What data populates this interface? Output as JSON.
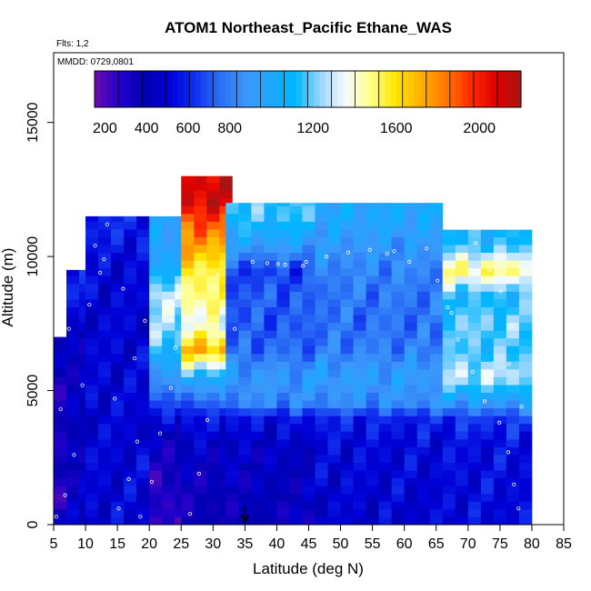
{
  "chart_data": {
    "type": "heatmap",
    "title": "ATOM1 Northeast_Pacific Ethane_WAS",
    "flights_label": "Flts: 1,2",
    "mmdd_label": "MMDD: 0729,0801",
    "xlabel": "Latitude (deg N)",
    "ylabel": "Altitude (m)",
    "xlim": [
      5,
      85
    ],
    "ylim": [
      0,
      17600
    ],
    "xticks": [
      "5",
      "10",
      "15",
      "20",
      "25",
      "30",
      "35",
      "40",
      "45",
      "50",
      "55",
      "60",
      "65",
      "70",
      "75",
      "80",
      "85"
    ],
    "yticks": [
      "0",
      "5000",
      "10000",
      "15000"
    ],
    "colorbar": {
      "min": 150,
      "max": 2200,
      "ticks": [
        "200",
        "400",
        "600",
        "800",
        "1200",
        "1600",
        "2000"
      ],
      "colors": [
        "#6a0dad",
        "#2200cc",
        "#0000b0",
        "#0000d8",
        "#1030ee",
        "#2a6ff5",
        "#3c96fa",
        "#1fa6ff",
        "#00b6ff",
        "#9ad6ff",
        "#f5fbff",
        "#ffff8a",
        "#ffe600",
        "#ffb000",
        "#ff7800",
        "#ff2a00",
        "#e00000",
        "#a81414"
      ]
    },
    "marker": {
      "latitude": 35,
      "altitude": 0
    },
    "data_columns": [
      {
        "lat": [
          5,
          20
        ],
        "top": 7000,
        "layers": [
          [
            0,
            450
          ],
          [
            800,
            330
          ],
          [
            1600,
            300
          ],
          [
            2400,
            290
          ],
          [
            3200,
            300
          ],
          [
            4000,
            320
          ],
          [
            5000,
            350
          ],
          [
            6000,
            380
          ]
        ]
      },
      {
        "lat": [
          7,
          20
        ],
        "top": 9500,
        "layers": [
          [
            7000,
            420
          ],
          [
            8000,
            520
          ],
          [
            9000,
            600
          ]
        ]
      },
      {
        "lat": [
          10,
          20
        ],
        "top": 11500,
        "layers": [
          [
            9500,
            500
          ],
          [
            10500,
            560
          ],
          [
            11000,
            600
          ]
        ]
      },
      {
        "lat": [
          20,
          25
        ],
        "top": 11500,
        "layers": [
          [
            0,
            240
          ],
          [
            1600,
            300
          ],
          [
            3500,
            420
          ],
          [
            5500,
            900
          ],
          [
            7000,
            1200
          ],
          [
            8500,
            1300
          ],
          [
            9500,
            1050
          ],
          [
            10500,
            950
          ]
        ]
      },
      {
        "lat": [
          25,
          32
        ],
        "top": 13000,
        "layers": [
          [
            0,
            360
          ],
          [
            2000,
            380
          ],
          [
            4000,
            550
          ],
          [
            5500,
            1050
          ],
          [
            6500,
            1700
          ],
          [
            7500,
            1350
          ],
          [
            8500,
            1500
          ],
          [
            9500,
            1550
          ],
          [
            10500,
            1750
          ],
          [
            11500,
            1950
          ],
          [
            12000,
            2100
          ]
        ]
      },
      {
        "lat": [
          32,
          46
        ],
        "top": 12000,
        "layers": [
          [
            0,
            380
          ],
          [
            3000,
            450
          ],
          [
            4000,
            560
          ],
          [
            4500,
            820
          ],
          [
            5500,
            900
          ],
          [
            6500,
            750
          ],
          [
            7500,
            700
          ],
          [
            8500,
            720
          ],
          [
            9500,
            650
          ],
          [
            10500,
            950
          ],
          [
            11500,
            1150
          ]
        ]
      },
      {
        "lat": [
          46,
          66
        ],
        "top": 12000,
        "layers": [
          [
            0,
            480
          ],
          [
            3000,
            520
          ],
          [
            4000,
            600
          ],
          [
            4500,
            840
          ],
          [
            5500,
            930
          ],
          [
            6500,
            800
          ],
          [
            7500,
            760
          ],
          [
            8500,
            780
          ],
          [
            9500,
            820
          ],
          [
            10500,
            900
          ],
          [
            11500,
            1000
          ]
        ]
      },
      {
        "lat": [
          66,
          79
        ],
        "top": 11000,
        "layers": [
          [
            0,
            520
          ],
          [
            3000,
            540
          ],
          [
            4000,
            650
          ],
          [
            4500,
            900
          ],
          [
            5500,
            1300
          ],
          [
            6500,
            1150
          ],
          [
            7500,
            1200
          ],
          [
            8500,
            1100
          ],
          [
            9500,
            1500
          ],
          [
            10500,
            1100
          ]
        ]
      }
    ],
    "sample_points": [
      [
        5.4,
        300
      ],
      [
        6.8,
        1100
      ],
      [
        8.2,
        2600
      ],
      [
        6.1,
        4300
      ],
      [
        9.5,
        5200
      ],
      [
        7.4,
        7300
      ],
      [
        10.6,
        8200
      ],
      [
        12.3,
        9400
      ],
      [
        11.5,
        10400
      ],
      [
        13.4,
        11200
      ],
      [
        15.2,
        600
      ],
      [
        16.8,
        1700
      ],
      [
        18.1,
        3100
      ],
      [
        14.6,
        4700
      ],
      [
        17.7,
        6200
      ],
      [
        19.3,
        7600
      ],
      [
        15.9,
        8800
      ],
      [
        12.9,
        9900
      ],
      [
        18.6,
        300
      ],
      [
        20.4,
        1600
      ],
      [
        21.7,
        3400
      ],
      [
        23.4,
        5100
      ],
      [
        24.1,
        6600
      ],
      [
        22.5,
        8100
      ],
      [
        26.4,
        400
      ],
      [
        27.8,
        1900
      ],
      [
        29.1,
        3900
      ],
      [
        31.6,
        6000
      ],
      [
        33.4,
        7300
      ],
      [
        30.7,
        9300
      ],
      [
        36.2,
        9800
      ],
      [
        38.5,
        9750
      ],
      [
        41.3,
        9700
      ],
      [
        44.6,
        9800
      ],
      [
        47.8,
        10000
      ],
      [
        51.2,
        10150
      ],
      [
        54.6,
        10250
      ],
      [
        57.3,
        10100
      ],
      [
        60.8,
        9800
      ],
      [
        63.5,
        10300
      ],
      [
        65.2,
        9100
      ],
      [
        66.8,
        8100
      ],
      [
        68.4,
        6900
      ],
      [
        70.7,
        5700
      ],
      [
        72.6,
        4600
      ],
      [
        74.9,
        3800
      ],
      [
        76.3,
        2700
      ],
      [
        77.2,
        1500
      ],
      [
        77.9,
        600
      ],
      [
        76.8,
        7400
      ],
      [
        75.1,
        8700
      ],
      [
        73.4,
        9500
      ],
      [
        71.2,
        10500
      ],
      [
        69.1,
        11100
      ],
      [
        78.4,
        4400
      ],
      [
        76.4,
        6000
      ],
      [
        67.4,
        7900
      ],
      [
        44.1,
        9650
      ],
      [
        40.2,
        9720
      ],
      [
        58.4,
        10200
      ]
    ]
  }
}
